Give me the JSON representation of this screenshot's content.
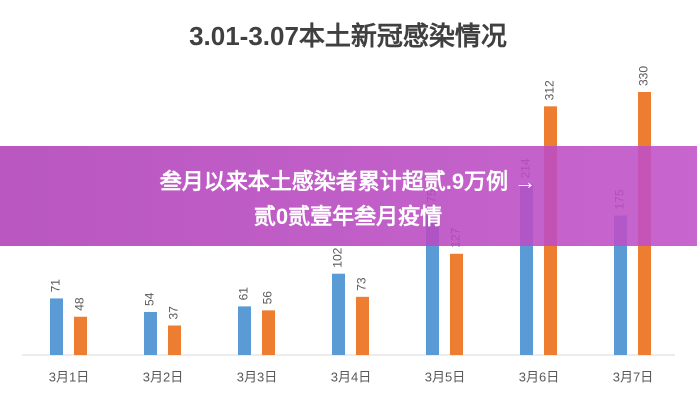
{
  "chart_data": {
    "type": "bar",
    "title": "3.01-3.07本土新冠感染情况",
    "categories": [
      "3月1日",
      "3月2日",
      "3月3日",
      "3月4日",
      "3月5日",
      "3月6日",
      "3月7日"
    ],
    "series": [
      {
        "color": "#5b9bd5",
        "values": [
          71,
          54,
          61,
          102,
          175,
          214,
          175
        ]
      },
      {
        "color": "#ed7d31",
        "values": [
          48,
          37,
          56,
          73,
          127,
          312,
          330
        ]
      }
    ]
  },
  "banner": {
    "line1": "叁月以来本土感染者累计超贰.9万例 →",
    "line2": "贰0贰壹年叁月疫情"
  }
}
